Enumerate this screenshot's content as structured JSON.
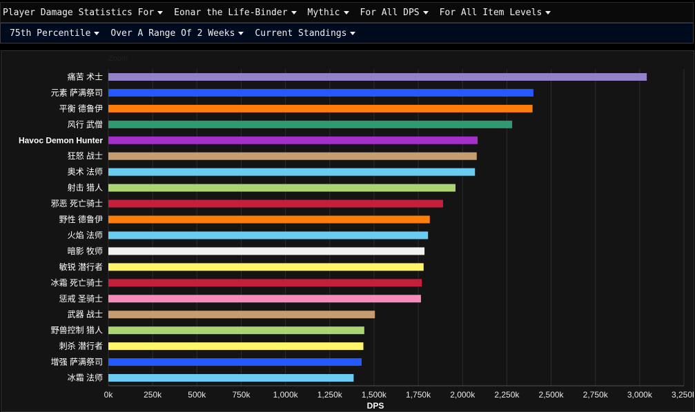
{
  "filters_row1": [
    {
      "label": "Player Damage Statistics For"
    },
    {
      "label": "Eonar the Life-Binder"
    },
    {
      "label": "Mythic"
    },
    {
      "label": "For All DPS"
    },
    {
      "label": "For All Item Levels"
    }
  ],
  "filters_row2": [
    {
      "label": "75th Percentile"
    },
    {
      "label": "Over A Range Of 2 Weeks"
    },
    {
      "label": "Current Standings"
    }
  ],
  "chart_data": {
    "type": "bar",
    "orientation": "horizontal",
    "zoom_label": "Zoom",
    "xlabel": "DPS",
    "xlim": [
      0,
      3250000
    ],
    "xticks": [
      0,
      250000,
      500000,
      750000,
      1000000,
      1250000,
      1500000,
      1750000,
      2000000,
      2250000,
      2500000,
      2750000,
      3000000,
      3250000
    ],
    "xtick_labels": [
      "0k",
      "250k",
      "500k",
      "750k",
      "1,000k",
      "1,250k",
      "1,500k",
      "1,750k",
      "2,000k",
      "2,250k",
      "2,500k",
      "2,750k",
      "3,000k",
      "3,250k"
    ],
    "grid": true,
    "highlight_category": "Havoc Demon Hunter",
    "categories": [
      "痛苦 术士",
      "元素 萨满祭司",
      "平衡 德鲁伊",
      "风行 武僧",
      "Havoc Demon Hunter",
      "狂怒 战士",
      "奥术 法师",
      "射击 猎人",
      "邪恶 死亡骑士",
      "野性 德鲁伊",
      "火焰 法师",
      "暗影 牧师",
      "敏锐 潜行者",
      "冰霜 死亡骑士",
      "惩戒 圣骑士",
      "武器 战士",
      "野兽控制 猎人",
      "刺杀 潜行者",
      "增强 萨满祭司",
      "冰霜 法师"
    ],
    "values": [
      3040000,
      2400000,
      2395000,
      2280000,
      2085000,
      2080000,
      2070000,
      1960000,
      1890000,
      1815000,
      1805000,
      1785000,
      1780000,
      1770000,
      1765000,
      1505000,
      1445000,
      1440000,
      1430000,
      1385000
    ],
    "colors": [
      "#9482c9",
      "#2459ff",
      "#ff7d0a",
      "#2f9a72",
      "#a330c9",
      "#c79c6e",
      "#69ccf0",
      "#abd473",
      "#c41f3b",
      "#ff7d0a",
      "#69ccf0",
      "#f0f0f0",
      "#fff569",
      "#c41f3b",
      "#f58cba",
      "#c79c6e",
      "#abd473",
      "#fff569",
      "#2459ff",
      "#69ccf0"
    ]
  }
}
